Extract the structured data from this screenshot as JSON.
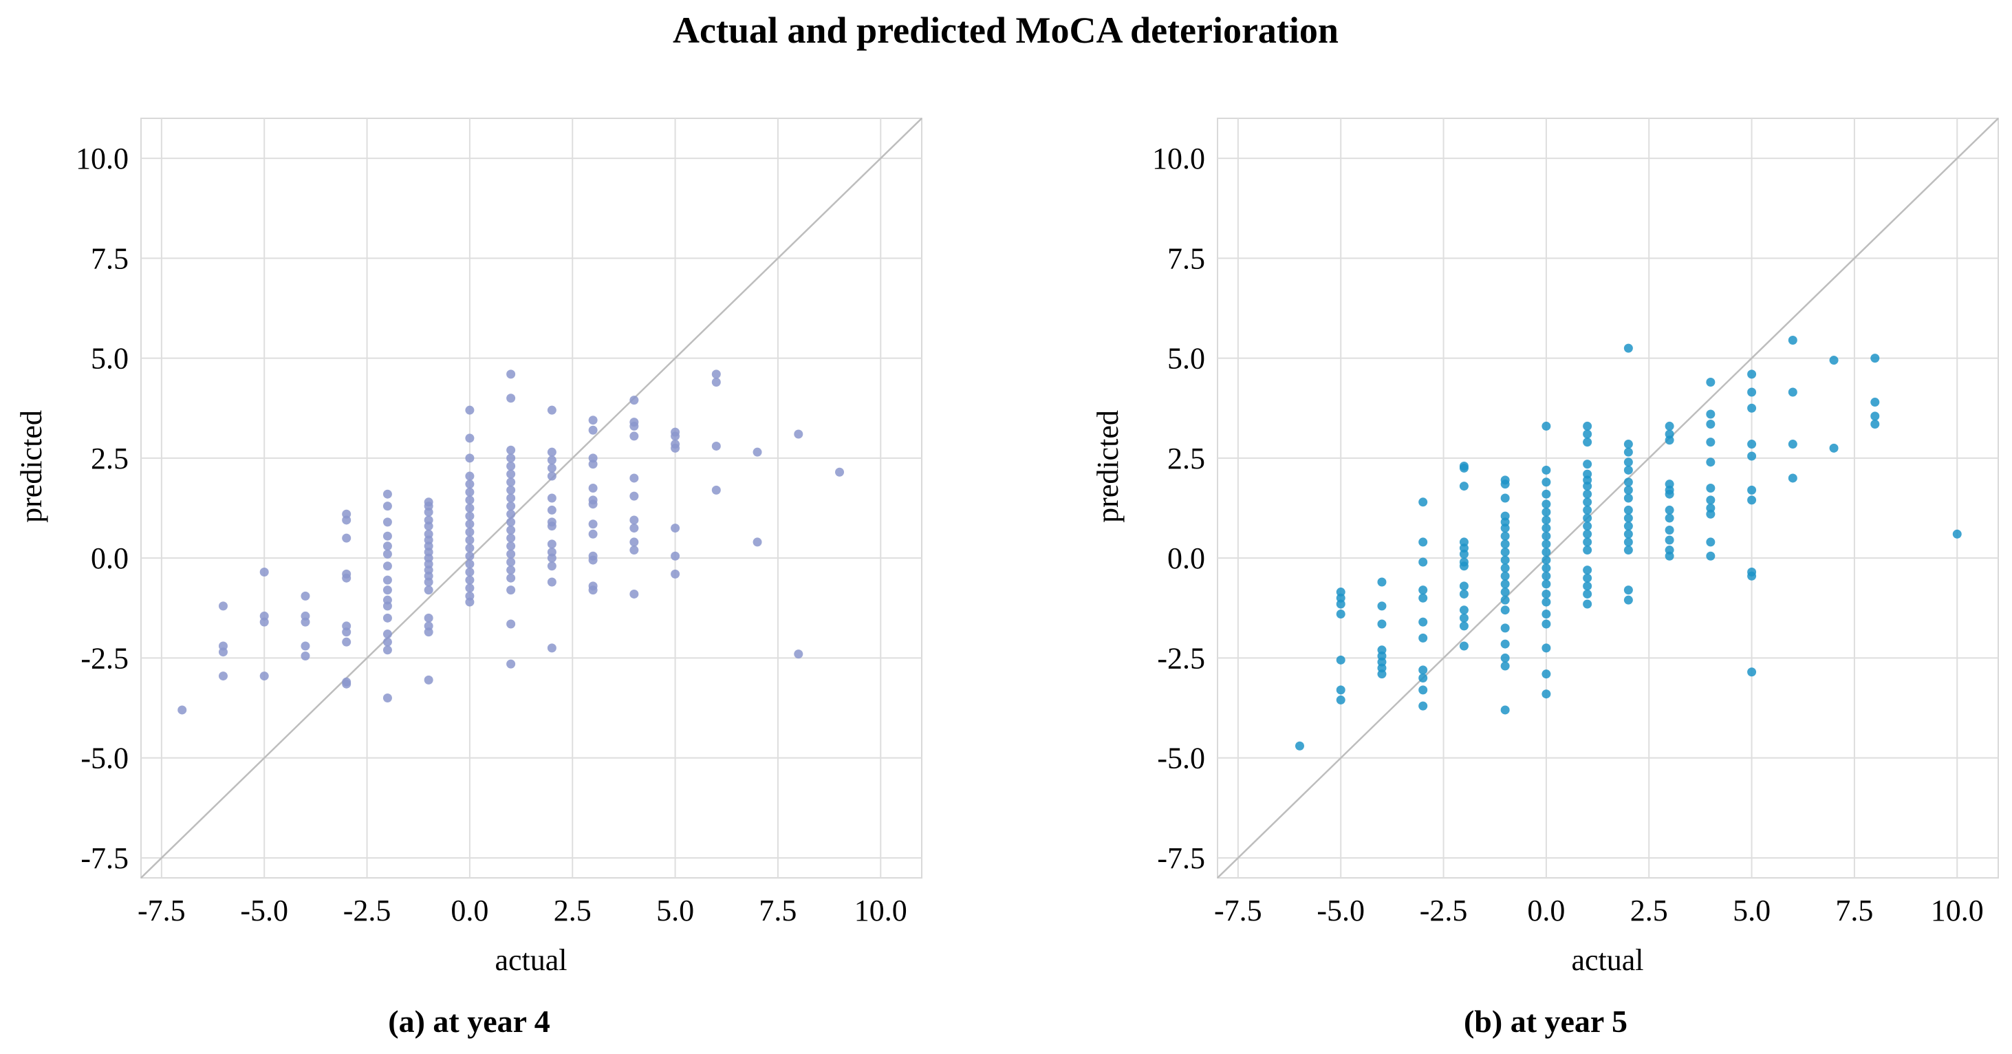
{
  "figure_title": "Actual and predicted MoCA deterioration",
  "colors": {
    "panel_a": "#8b97cc",
    "panel_b": "#1f94c8",
    "grid": "#dedede",
    "diagonal": "#bdbdbd",
    "frame": "#d9d9d9"
  },
  "chart_data": [
    {
      "type": "scatter",
      "caption": "(a) at year 4",
      "xlabel": "actual",
      "ylabel": "predicted",
      "xlim": [
        -8.0,
        11.0
      ],
      "ylim": [
        -8.0,
        11.0
      ],
      "xticks": [
        "-7.5",
        "-5.0",
        "-2.5",
        "0.0",
        "2.5",
        "5.0",
        "7.5",
        "10.0"
      ],
      "yticks": [
        "-7.5",
        "-5.0",
        "-2.5",
        "0.0",
        "2.5",
        "5.0",
        "7.5",
        "10.0"
      ],
      "reference_line": "y = x",
      "points": [
        [
          -7,
          -3.8
        ],
        [
          -6,
          -1.2
        ],
        [
          -6,
          -2.2
        ],
        [
          -6,
          -2.35
        ],
        [
          -6,
          -2.95
        ],
        [
          -5,
          -0.35
        ],
        [
          -5,
          -1.45
        ],
        [
          -5,
          -1.6
        ],
        [
          -5,
          -2.95
        ],
        [
          -4,
          -0.95
        ],
        [
          -4,
          -1.45
        ],
        [
          -4,
          -1.6
        ],
        [
          -4,
          -2.2
        ],
        [
          -4,
          -2.45
        ],
        [
          -3,
          1.1
        ],
        [
          -3,
          0.95
        ],
        [
          -3,
          0.5
        ],
        [
          -3,
          -0.4
        ],
        [
          -3,
          -0.5
        ],
        [
          -3,
          -1.7
        ],
        [
          -3,
          -1.85
        ],
        [
          -3,
          -2.1
        ],
        [
          -3,
          -3.1
        ],
        [
          -3,
          -3.15
        ],
        [
          -2,
          1.6
        ],
        [
          -2,
          1.3
        ],
        [
          -2,
          0.9
        ],
        [
          -2,
          0.55
        ],
        [
          -2,
          0.3
        ],
        [
          -2,
          0.1
        ],
        [
          -2,
          -0.2
        ],
        [
          -2,
          -0.55
        ],
        [
          -2,
          -0.8
        ],
        [
          -2,
          -1.05
        ],
        [
          -2,
          -1.2
        ],
        [
          -2,
          -1.5
        ],
        [
          -2,
          -1.9
        ],
        [
          -2,
          -2.1
        ],
        [
          -2,
          -2.3
        ],
        [
          -2,
          -3.5
        ],
        [
          -1,
          1.4
        ],
        [
          -1,
          1.3
        ],
        [
          -1,
          1.15
        ],
        [
          -1,
          0.95
        ],
        [
          -1,
          0.8
        ],
        [
          -1,
          0.6
        ],
        [
          -1,
          0.45
        ],
        [
          -1,
          0.3
        ],
        [
          -1,
          0.15
        ],
        [
          -1,
          0.0
        ],
        [
          -1,
          -0.15
        ],
        [
          -1,
          -0.3
        ],
        [
          -1,
          -0.45
        ],
        [
          -1,
          -0.6
        ],
        [
          -1,
          -0.8
        ],
        [
          -1,
          -1.5
        ],
        [
          -1,
          -1.7
        ],
        [
          -1,
          -1.85
        ],
        [
          -1,
          -3.05
        ],
        [
          0,
          3.7
        ],
        [
          0,
          3.0
        ],
        [
          0,
          2.5
        ],
        [
          0,
          2.05
        ],
        [
          0,
          1.85
        ],
        [
          0,
          1.65
        ],
        [
          0,
          1.45
        ],
        [
          0,
          1.25
        ],
        [
          0,
          1.05
        ],
        [
          0,
          0.85
        ],
        [
          0,
          0.65
        ],
        [
          0,
          0.45
        ],
        [
          0,
          0.25
        ],
        [
          0,
          0.05
        ],
        [
          0,
          -0.15
        ],
        [
          0,
          -0.35
        ],
        [
          0,
          -0.55
        ],
        [
          0,
          -0.75
        ],
        [
          0,
          -0.95
        ],
        [
          0,
          -1.1
        ],
        [
          1,
          4.6
        ],
        [
          1,
          4.0
        ],
        [
          1,
          2.7
        ],
        [
          1,
          2.5
        ],
        [
          1,
          2.3
        ],
        [
          1,
          2.1
        ],
        [
          1,
          1.9
        ],
        [
          1,
          1.7
        ],
        [
          1,
          1.5
        ],
        [
          1,
          1.3
        ],
        [
          1,
          1.1
        ],
        [
          1,
          0.9
        ],
        [
          1,
          0.7
        ],
        [
          1,
          0.5
        ],
        [
          1,
          0.3
        ],
        [
          1,
          0.1
        ],
        [
          1,
          -0.1
        ],
        [
          1,
          -0.3
        ],
        [
          1,
          -0.5
        ],
        [
          1,
          -0.8
        ],
        [
          1,
          -1.65
        ],
        [
          1,
          -2.65
        ],
        [
          2,
          3.7
        ],
        [
          2,
          2.65
        ],
        [
          2,
          2.45
        ],
        [
          2,
          2.25
        ],
        [
          2,
          2.05
        ],
        [
          2,
          1.5
        ],
        [
          2,
          1.2
        ],
        [
          2,
          0.9
        ],
        [
          2,
          0.8
        ],
        [
          2,
          0.35
        ],
        [
          2,
          0.15
        ],
        [
          2,
          0.0
        ],
        [
          2,
          -0.2
        ],
        [
          2,
          -0.6
        ],
        [
          2,
          -2.25
        ],
        [
          3,
          3.45
        ],
        [
          3,
          3.2
        ],
        [
          3,
          2.5
        ],
        [
          3,
          2.35
        ],
        [
          3,
          1.75
        ],
        [
          3,
          1.45
        ],
        [
          3,
          1.35
        ],
        [
          3,
          0.85
        ],
        [
          3,
          0.6
        ],
        [
          3,
          0.05
        ],
        [
          3,
          -0.05
        ],
        [
          3,
          -0.7
        ],
        [
          3,
          -0.8
        ],
        [
          4,
          3.95
        ],
        [
          4,
          3.4
        ],
        [
          4,
          3.3
        ],
        [
          4,
          3.05
        ],
        [
          4,
          2.0
        ],
        [
          4,
          1.55
        ],
        [
          4,
          0.95
        ],
        [
          4,
          0.75
        ],
        [
          4,
          0.4
        ],
        [
          4,
          0.2
        ],
        [
          4,
          -0.9
        ],
        [
          5,
          3.15
        ],
        [
          5,
          3.05
        ],
        [
          5,
          2.85
        ],
        [
          5,
          2.75
        ],
        [
          5,
          0.75
        ],
        [
          5,
          0.05
        ],
        [
          5,
          -0.4
        ],
        [
          6,
          4.6
        ],
        [
          6,
          4.4
        ],
        [
          6,
          2.8
        ],
        [
          6,
          1.7
        ],
        [
          7,
          2.65
        ],
        [
          7,
          0.4
        ],
        [
          8,
          3.1
        ],
        [
          8,
          -2.4
        ],
        [
          9,
          2.15
        ]
      ]
    },
    {
      "type": "scatter",
      "caption": "(b) at year 5",
      "xlabel": "actual",
      "ylabel": "predicted",
      "xlim": [
        -8.0,
        11.0
      ],
      "ylim": [
        -8.0,
        11.0
      ],
      "xticks": [
        "-7.5",
        "-5.0",
        "-2.5",
        "0.0",
        "2.5",
        "5.0",
        "7.5",
        "10.0"
      ],
      "yticks": [
        "-7.5",
        "-5.0",
        "-2.5",
        "0.0",
        "2.5",
        "5.0",
        "7.5",
        "10.0"
      ],
      "reference_line": "y = x",
      "points": [
        [
          -6,
          -4.7
        ],
        [
          -5,
          -0.85
        ],
        [
          -5,
          -1.0
        ],
        [
          -5,
          -1.15
        ],
        [
          -5,
          -1.4
        ],
        [
          -5,
          -2.55
        ],
        [
          -5,
          -3.3
        ],
        [
          -5,
          -3.55
        ],
        [
          -4,
          -0.6
        ],
        [
          -4,
          -1.2
        ],
        [
          -4,
          -1.65
        ],
        [
          -4,
          -2.3
        ],
        [
          -4,
          -2.45
        ],
        [
          -4,
          -2.6
        ],
        [
          -4,
          -2.75
        ],
        [
          -4,
          -2.9
        ],
        [
          -3,
          1.4
        ],
        [
          -3,
          0.4
        ],
        [
          -3,
          -0.1
        ],
        [
          -3,
          -0.8
        ],
        [
          -3,
          -1.0
        ],
        [
          -3,
          -1.6
        ],
        [
          -3,
          -2.0
        ],
        [
          -3,
          -2.8
        ],
        [
          -3,
          -3.0
        ],
        [
          -3,
          -3.3
        ],
        [
          -3,
          -3.7
        ],
        [
          -2,
          2.3
        ],
        [
          -2,
          2.25
        ],
        [
          -2,
          1.8
        ],
        [
          -2,
          0.4
        ],
        [
          -2,
          0.25
        ],
        [
          -2,
          0.1
        ],
        [
          -2,
          -0.1
        ],
        [
          -2,
          -0.2
        ],
        [
          -2,
          -0.7
        ],
        [
          -2,
          -0.9
        ],
        [
          -2,
          -1.3
        ],
        [
          -2,
          -1.5
        ],
        [
          -2,
          -1.7
        ],
        [
          -2,
          -2.2
        ],
        [
          -1,
          1.95
        ],
        [
          -1,
          1.85
        ],
        [
          -1,
          1.5
        ],
        [
          -1,
          1.05
        ],
        [
          -1,
          0.9
        ],
        [
          -1,
          0.75
        ],
        [
          -1,
          0.55
        ],
        [
          -1,
          0.35
        ],
        [
          -1,
          0.15
        ],
        [
          -1,
          -0.05
        ],
        [
          -1,
          -0.25
        ],
        [
          -1,
          -0.45
        ],
        [
          -1,
          -0.65
        ],
        [
          -1,
          -0.85
        ],
        [
          -1,
          -1.05
        ],
        [
          -1,
          -1.3
        ],
        [
          -1,
          -1.75
        ],
        [
          -1,
          -2.15
        ],
        [
          -1,
          -2.5
        ],
        [
          -1,
          -2.7
        ],
        [
          -1,
          -3.8
        ],
        [
          0,
          3.3
        ],
        [
          0,
          2.2
        ],
        [
          0,
          1.9
        ],
        [
          0,
          1.6
        ],
        [
          0,
          1.35
        ],
        [
          0,
          1.15
        ],
        [
          0,
          0.95
        ],
        [
          0,
          0.75
        ],
        [
          0,
          0.55
        ],
        [
          0,
          0.35
        ],
        [
          0,
          0.15
        ],
        [
          0,
          -0.05
        ],
        [
          0,
          -0.25
        ],
        [
          0,
          -0.45
        ],
        [
          0,
          -0.65
        ],
        [
          0,
          -0.9
        ],
        [
          0,
          -1.1
        ],
        [
          0,
          -1.4
        ],
        [
          0,
          -1.65
        ],
        [
          0,
          -2.25
        ],
        [
          0,
          -2.9
        ],
        [
          0,
          -3.4
        ],
        [
          1,
          3.3
        ],
        [
          1,
          3.1
        ],
        [
          1,
          2.9
        ],
        [
          1,
          2.35
        ],
        [
          1,
          2.1
        ],
        [
          1,
          1.95
        ],
        [
          1,
          1.8
        ],
        [
          1,
          1.6
        ],
        [
          1,
          1.4
        ],
        [
          1,
          1.2
        ],
        [
          1,
          1.0
        ],
        [
          1,
          0.8
        ],
        [
          1,
          0.6
        ],
        [
          1,
          0.4
        ],
        [
          1,
          0.2
        ],
        [
          1,
          -0.3
        ],
        [
          1,
          -0.5
        ],
        [
          1,
          -0.7
        ],
        [
          1,
          -0.9
        ],
        [
          1,
          -1.15
        ],
        [
          2,
          5.25
        ],
        [
          2,
          2.85
        ],
        [
          2,
          2.65
        ],
        [
          2,
          2.4
        ],
        [
          2,
          2.2
        ],
        [
          2,
          1.9
        ],
        [
          2,
          1.7
        ],
        [
          2,
          1.5
        ],
        [
          2,
          1.2
        ],
        [
          2,
          1.0
        ],
        [
          2,
          0.8
        ],
        [
          2,
          0.6
        ],
        [
          2,
          0.4
        ],
        [
          2,
          0.2
        ],
        [
          2,
          -0.8
        ],
        [
          2,
          -1.05
        ],
        [
          3,
          3.3
        ],
        [
          3,
          3.1
        ],
        [
          3,
          2.95
        ],
        [
          3,
          1.85
        ],
        [
          3,
          1.7
        ],
        [
          3,
          1.6
        ],
        [
          3,
          1.2
        ],
        [
          3,
          1.0
        ],
        [
          3,
          0.7
        ],
        [
          3,
          0.45
        ],
        [
          3,
          0.2
        ],
        [
          3,
          0.05
        ],
        [
          4,
          4.4
        ],
        [
          4,
          3.6
        ],
        [
          4,
          3.35
        ],
        [
          4,
          2.9
        ],
        [
          4,
          2.4
        ],
        [
          4,
          1.75
        ],
        [
          4,
          1.45
        ],
        [
          4,
          1.25
        ],
        [
          4,
          1.1
        ],
        [
          4,
          0.4
        ],
        [
          4,
          0.05
        ],
        [
          5,
          4.6
        ],
        [
          5,
          4.15
        ],
        [
          5,
          3.75
        ],
        [
          5,
          2.85
        ],
        [
          5,
          2.55
        ],
        [
          5,
          1.7
        ],
        [
          5,
          1.45
        ],
        [
          5,
          -0.35
        ],
        [
          5,
          -0.45
        ],
        [
          5,
          -2.85
        ],
        [
          6,
          5.45
        ],
        [
          6,
          4.15
        ],
        [
          6,
          2.85
        ],
        [
          6,
          2.0
        ],
        [
          7,
          4.95
        ],
        [
          7,
          2.75
        ],
        [
          8,
          5.0
        ],
        [
          8,
          3.9
        ],
        [
          8,
          3.55
        ],
        [
          8,
          3.35
        ],
        [
          10,
          0.6
        ]
      ]
    }
  ]
}
